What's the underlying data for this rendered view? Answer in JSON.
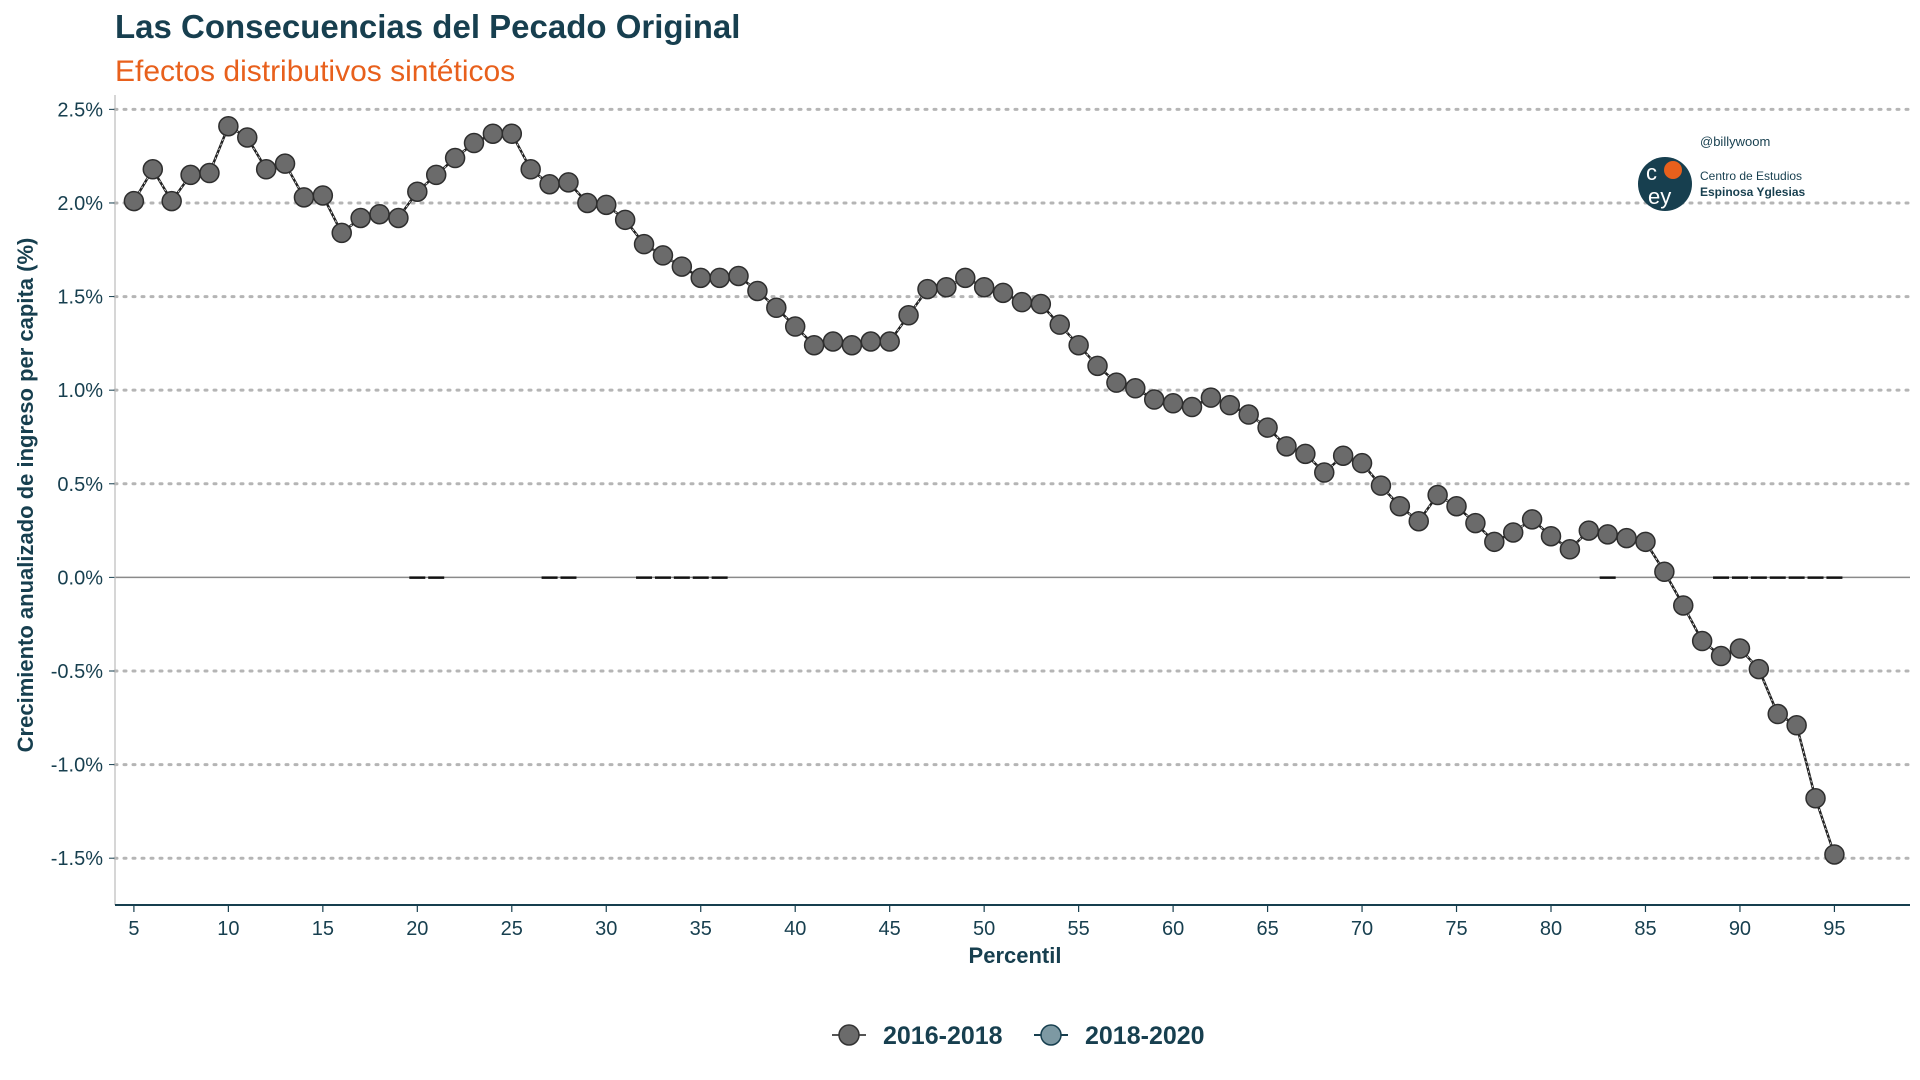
{
  "title": "Las Consecuencias del Pecado Original",
  "subtitle": "Efectos distributivos sintéticos",
  "credit": "@billywoom",
  "logo": {
    "icon": "ceey-logo-icon",
    "line1": "Centro de Estudios",
    "line2": "Espinosa Yglesias",
    "letters": "ceey"
  },
  "colors": {
    "title": "#173f4f",
    "subtitle": "#e8601c",
    "series_2016_2018": "#6b6b6b",
    "series_2018_2020": "#7d99a3",
    "grid": "#b5b5b5"
  },
  "chart_data": {
    "type": "line",
    "title": "Las Consecuencias del Pecado Original",
    "subtitle": "Efectos distributivos sintéticos",
    "xlabel": "Percentil",
    "ylabel": "Crecimiento anualizado de ingreso per capita (%)",
    "xlim": [
      4,
      99
    ],
    "ylim": [
      -1.75,
      2.55
    ],
    "x_ticks": [
      5,
      10,
      15,
      20,
      25,
      30,
      35,
      40,
      45,
      50,
      55,
      60,
      65,
      70,
      75,
      80,
      85,
      90,
      95
    ],
    "y_ticks": [
      -1.5,
      -1.0,
      -0.5,
      0.0,
      0.5,
      1.0,
      1.5,
      2.0,
      2.5
    ],
    "y_tick_labels": [
      "-1.5%",
      "-1.0%",
      "-0.5%",
      "0.0%",
      "0.5%",
      "1.0%",
      "1.5%",
      "2.0%",
      "2.5%"
    ],
    "grid": "horizontal-dotted",
    "legend_position": "bottom",
    "series": [
      {
        "name": "2016-2018",
        "x": [
          5,
          6,
          7,
          8,
          9,
          10,
          11,
          12,
          13,
          14,
          15,
          16,
          17,
          18,
          19,
          20,
          21,
          22,
          23,
          24,
          25,
          26,
          27,
          28,
          29,
          30,
          31,
          32,
          33,
          34,
          35,
          36,
          37,
          38,
          39,
          40,
          41,
          42,
          43,
          44,
          45,
          46,
          47,
          48,
          49,
          50,
          51,
          52,
          53,
          54,
          55,
          56,
          57,
          58,
          59,
          60,
          61,
          62,
          63,
          64,
          65,
          66,
          67,
          68,
          69,
          70,
          71,
          72,
          73,
          74,
          75,
          76,
          77,
          78,
          79,
          80,
          81,
          82,
          83,
          84,
          85,
          86,
          87,
          88,
          89,
          90,
          91,
          92,
          93,
          94,
          95
        ],
        "values": [
          2.01,
          2.18,
          2.01,
          2.15,
          2.16,
          2.41,
          2.35,
          2.18,
          2.21,
          2.03,
          2.04,
          1.84,
          1.92,
          1.94,
          1.92,
          2.06,
          2.15,
          2.24,
          2.32,
          2.37,
          2.37,
          2.18,
          2.1,
          2.11,
          2.0,
          1.99,
          1.91,
          1.78,
          1.72,
          1.66,
          1.6,
          1.6,
          1.61,
          1.53,
          1.44,
          1.34,
          1.24,
          1.26,
          1.24,
          1.26,
          1.26,
          1.4,
          1.54,
          1.55,
          1.6,
          1.55,
          1.52,
          1.47,
          1.46,
          1.35,
          1.24,
          1.13,
          1.04,
          1.01,
          0.95,
          0.93,
          0.91,
          0.96,
          0.92,
          0.87,
          0.8,
          0.7,
          0.66,
          0.56,
          0.65,
          0.61,
          0.49,
          0.38,
          0.3,
          0.44,
          0.38,
          0.29,
          0.19,
          0.24,
          0.31,
          0.22,
          0.15,
          0.25,
          0.23,
          0.21,
          0.19,
          0.03,
          -0.15,
          -0.34,
          -0.42,
          -0.38,
          -0.49,
          -0.73,
          -0.79,
          -1.18,
          -1.48
        ]
      },
      {
        "name": "2018-2020",
        "x": [
          20,
          21,
          27,
          28,
          32,
          33,
          34,
          35,
          36,
          83,
          89,
          90,
          91,
          92,
          93,
          94,
          95
        ],
        "values": [
          0,
          0,
          0,
          0,
          0,
          0,
          0,
          0,
          0,
          0,
          0,
          0,
          0,
          0,
          0,
          0,
          0
        ]
      }
    ]
  }
}
